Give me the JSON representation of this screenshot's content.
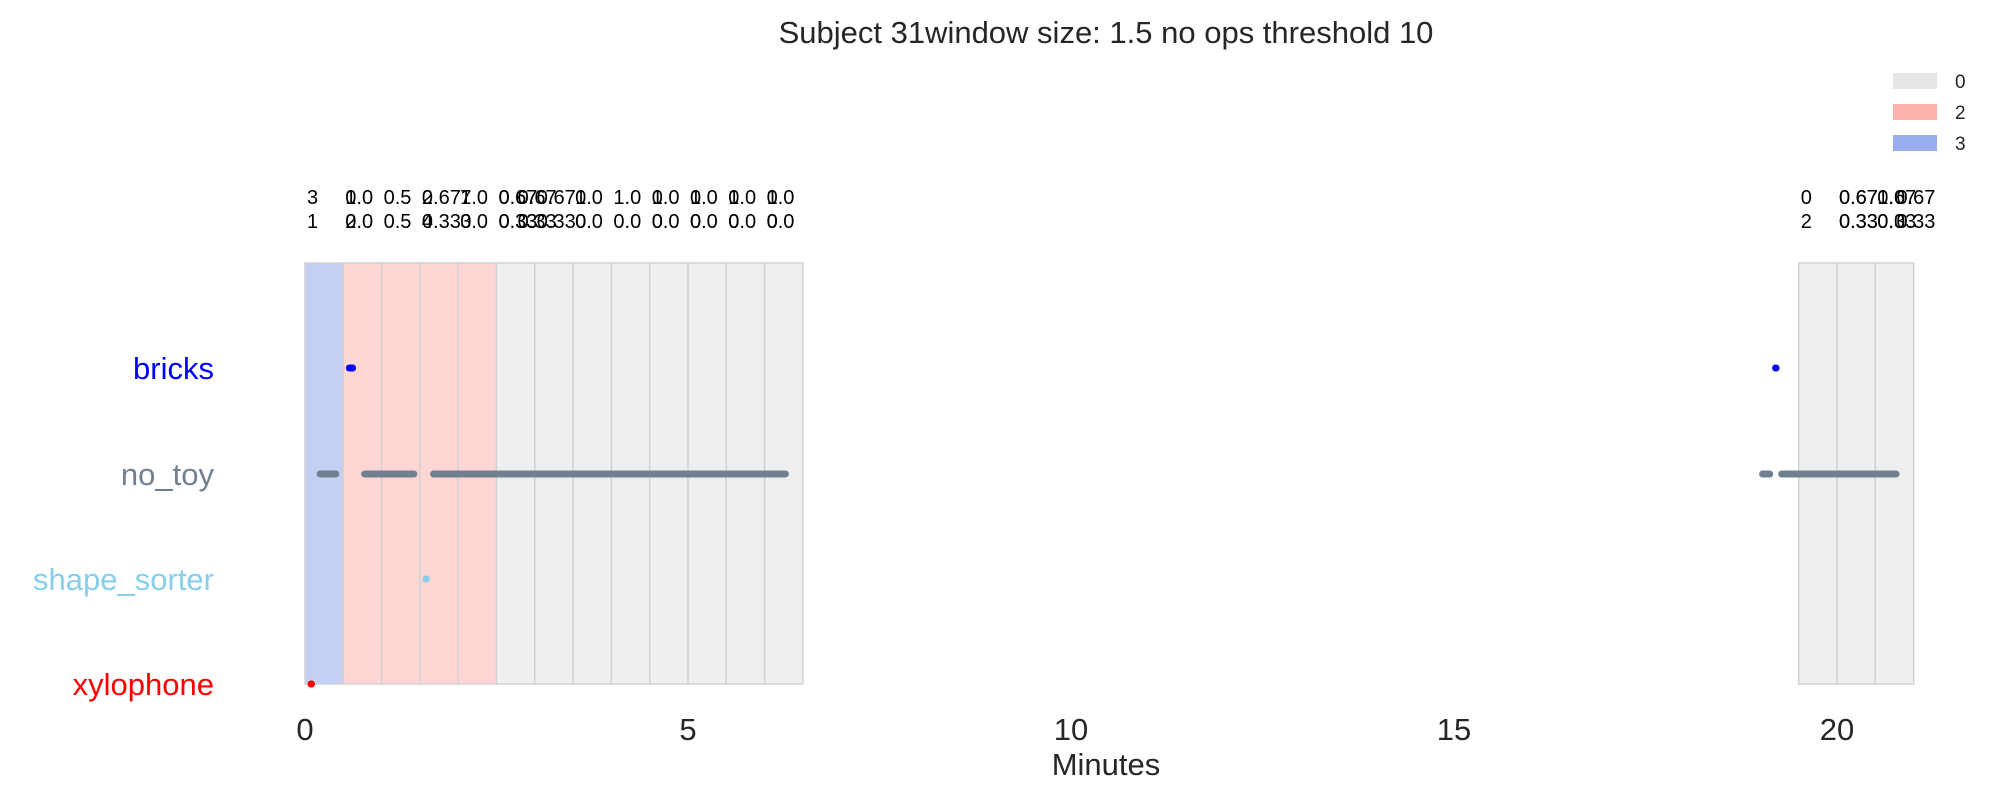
{
  "chart_data": {
    "type": "timeline",
    "title": "Subject 31window size: 1.5 no ops threshold 10",
    "xlabel": "Minutes",
    "xlim": [
      -0.6,
      21.6
    ],
    "x_ticks": [
      0,
      5,
      10,
      15,
      20
    ],
    "y_categories": [
      {
        "label": "bricks",
        "color": "#0000ff"
      },
      {
        "label": "no_toy",
        "color": "#708090"
      },
      {
        "label": "shape_sorter",
        "color": "#87ceeb"
      },
      {
        "label": "xylophone",
        "color": "#ff0000"
      }
    ],
    "legend": {
      "placement": "top-right",
      "entries": [
        {
          "label": "0",
          "color": "#e5e5e5"
        },
        {
          "label": "2",
          "color": "#ffb3ae"
        },
        {
          "label": "3",
          "color": "#99aef0"
        }
      ]
    },
    "state_colors": {
      "0": "#efefef",
      "2": "#ffd6d3",
      "3": "#c3cff3"
    },
    "windows": [
      {
        "start": 0.0,
        "end": 0.5,
        "state": 3,
        "top": "3",
        "bottom": "1"
      },
      {
        "start": 0.5,
        "end": 1.0,
        "state": 2,
        "top": "1.0",
        "bottom": "0.0"
      },
      {
        "start": 1.0,
        "end": 1.5,
        "state": 2,
        "top": "0.5",
        "bottom": "0.5"
      },
      {
        "start": 1.5,
        "end": 2.0,
        "state": 2,
        "top": "0.67",
        "bottom": "0.33"
      },
      {
        "start": 2.0,
        "end": 2.5,
        "state": 2,
        "top": "1.0",
        "bottom": "0.0"
      },
      {
        "start": 2.5,
        "end": 3.0,
        "state": 0,
        "top": "0.67",
        "bottom": "0.33"
      },
      {
        "start": 3.0,
        "end": 3.5,
        "state": 0,
        "top": "0.67",
        "bottom": "0.33"
      },
      {
        "start": 3.5,
        "end": 4.0,
        "state": 0,
        "top": "1.0",
        "bottom": "0.0"
      },
      {
        "start": 4.0,
        "end": 4.5,
        "state": 0,
        "top": "1.0",
        "bottom": "0.0"
      },
      {
        "start": 4.5,
        "end": 5.0,
        "state": 0,
        "top": "1.0",
        "bottom": "0.0"
      },
      {
        "start": 5.0,
        "end": 5.5,
        "state": 0,
        "top": "1.0",
        "bottom": "0.0"
      },
      {
        "start": 5.5,
        "end": 6.0,
        "state": 0,
        "top": "1.0",
        "bottom": "0.0"
      },
      {
        "start": 6.0,
        "end": 6.5,
        "state": 0,
        "top": "1.0",
        "bottom": "0.0"
      },
      {
        "start": 19.5,
        "end": 20.0,
        "state": 0,
        "top": "0",
        "bottom": "2"
      },
      {
        "start": 20.0,
        "end": 20.5,
        "state": 0,
        "top": "0.67",
        "bottom": "0.33"
      },
      {
        "start": 20.5,
        "end": 21.0,
        "state": 0,
        "top": "0.67",
        "bottom": "0.33"
      }
    ],
    "window_label_overlaps": [
      {
        "x": 0.5,
        "top": "0",
        "bottom": "2"
      },
      {
        "x": 1.5,
        "top": "2",
        "bottom": "4"
      },
      {
        "x": 2.0,
        "top": "7",
        "bottom": "3"
      },
      {
        "x": 2.5,
        "top": "0.67",
        "bottom": "0.33"
      },
      {
        "x": 2.75,
        "top": "0.67",
        "bottom": "0.33"
      },
      {
        "x": 3.5,
        "top": "0",
        "bottom": "0"
      },
      {
        "x": 4.5,
        "top": "0",
        "bottom": "0"
      },
      {
        "x": 5.0,
        "top": "0",
        "bottom": "0"
      },
      {
        "x": 5.5,
        "top": "0",
        "bottom": "0"
      },
      {
        "x": 6.0,
        "top": "0",
        "bottom": "0"
      },
      {
        "x": 20.0,
        "top": "0.67",
        "bottom": "0.33"
      },
      {
        "x": 20.5,
        "top": "1.0",
        "bottom": "0.0"
      },
      {
        "x": 20.75,
        "top": "0.67",
        "bottom": "0.33"
      }
    ],
    "segments": [
      {
        "toy": "xylophone",
        "start": 0.0,
        "end": 0.12
      },
      {
        "toy": "no_toy",
        "start": 0.12,
        "end": 0.48
      },
      {
        "toy": "bricks",
        "start": 0.5,
        "end": 0.7
      },
      {
        "toy": "no_toy",
        "start": 0.7,
        "end": 1.5
      },
      {
        "toy": "shape_sorter",
        "start": 1.5,
        "end": 1.6
      },
      {
        "toy": "no_toy",
        "start": 1.6,
        "end": 6.35
      },
      {
        "toy": "no_toy",
        "start": 18.95,
        "end": 19.2
      },
      {
        "toy": "bricks",
        "start": 19.12,
        "end": 19.22
      },
      {
        "toy": "no_toy",
        "start": 19.2,
        "end": 20.85
      }
    ]
  }
}
